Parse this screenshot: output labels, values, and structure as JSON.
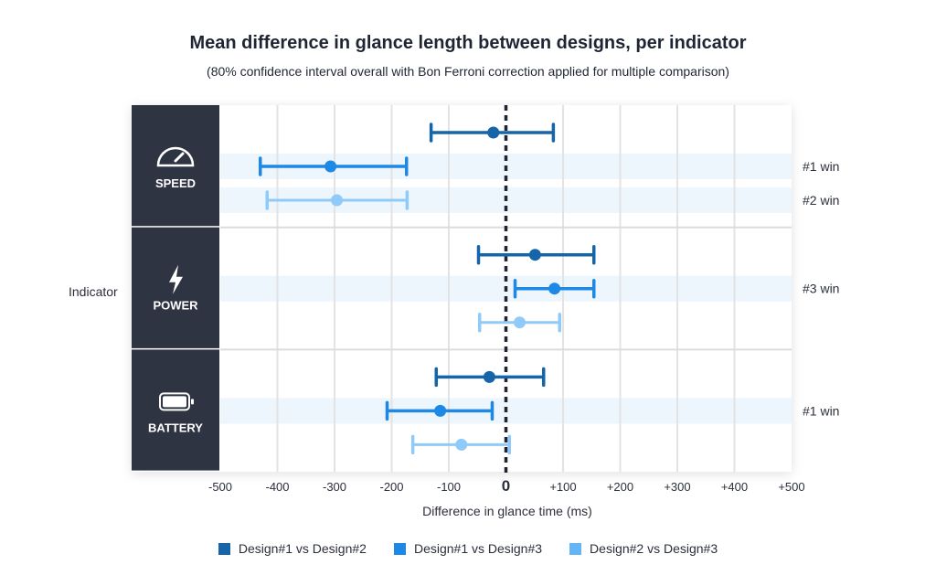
{
  "chart_data": {
    "type": "errorbar",
    "title": "Mean difference in glance length between designs, per indicator",
    "subtitle": "(80% confidence interval overall with Bon Ferroni correction applied for multiple comparison)",
    "xlabel": "Difference in glance time (ms)",
    "ylabel": "Indicator",
    "xlim": [
      -500,
      500
    ],
    "xticks": [
      "-500",
      "-400",
      "-300",
      "-200",
      "-100",
      "0",
      "+100",
      "+200",
      "+300",
      "+400",
      "+500"
    ],
    "xtick_values": [
      -500,
      -400,
      -300,
      -200,
      -100,
      0,
      100,
      200,
      300,
      400,
      500
    ],
    "legend": [
      {
        "name": "Design#1 vs Design#2",
        "color": "#1565a8"
      },
      {
        "name": "Design#1 vs Design#3",
        "color": "#1e88e5"
      },
      {
        "name": "Design#2 vs Design#3",
        "color": "#64b5f6"
      }
    ],
    "groups": [
      {
        "name": "SPEED",
        "icon": "speedometer-icon",
        "rows": [
          {
            "series": 0,
            "mean": -22,
            "low": -131,
            "high": 83,
            "note": ""
          },
          {
            "series": 1,
            "mean": -307,
            "low": -430,
            "high": -174,
            "note": "#1 win"
          },
          {
            "series": 2,
            "mean": -296,
            "low": -418,
            "high": -173,
            "note": "#2 win"
          }
        ]
      },
      {
        "name": "POWER",
        "icon": "lightning-icon",
        "rows": [
          {
            "series": 0,
            "mean": 51,
            "low": -48,
            "high": 154,
            "note": ""
          },
          {
            "series": 1,
            "mean": 85,
            "low": 16,
            "high": 154,
            "note": "#3 win"
          },
          {
            "series": 2,
            "mean": 24,
            "low": -46,
            "high": 94,
            "note": ""
          }
        ]
      },
      {
        "name": "BATTERY",
        "icon": "battery-icon",
        "rows": [
          {
            "series": 0,
            "mean": -29,
            "low": -122,
            "high": 66,
            "note": ""
          },
          {
            "series": 1,
            "mean": -115,
            "low": -208,
            "high": -24,
            "note": "#1 win"
          },
          {
            "series": 2,
            "mean": -78,
            "low": -163,
            "high": 6,
            "note": ""
          }
        ]
      }
    ]
  }
}
